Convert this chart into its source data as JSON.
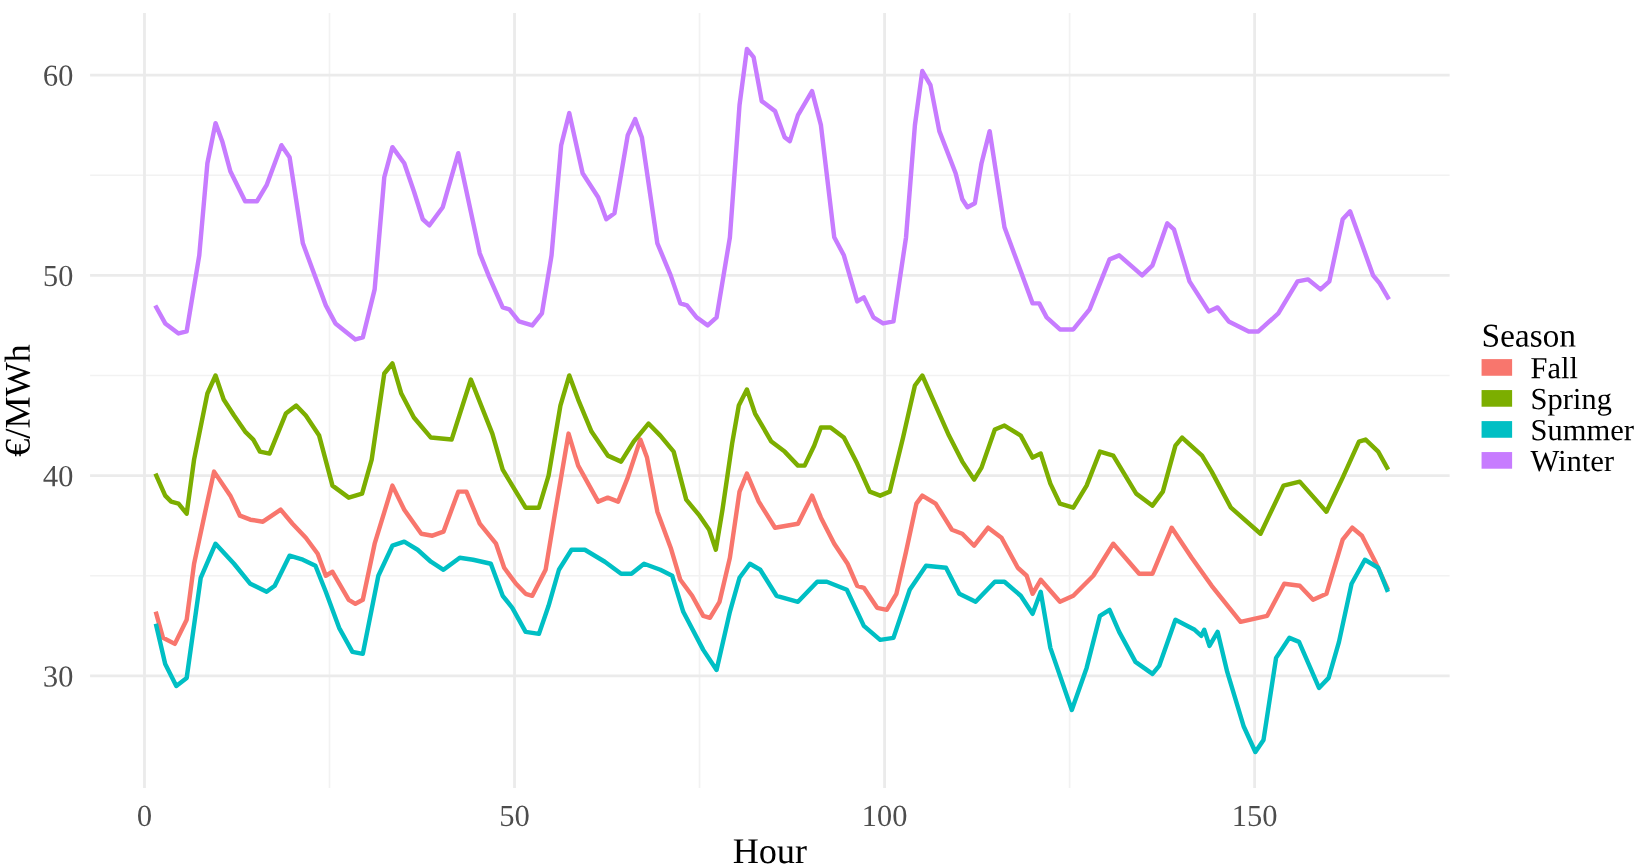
{
  "chart_data": {
    "type": "line",
    "xlabel": "Hour",
    "ylabel": "€/MWh",
    "legend_title": "Season",
    "legend": "right",
    "grid": true,
    "xlim": [
      -7.35,
      176.35
    ],
    "ylim": [
      24.4,
      63.1
    ],
    "xticks": [
      0,
      50,
      100,
      150
    ],
    "yticks": [
      30,
      40,
      50,
      60
    ],
    "series": [
      {
        "name": "Fall",
        "color": "#f8766d",
        "x": [
          1.6,
          2.5,
          4.1,
          5.7,
          6.7,
          8.5,
          9.4,
          11.6,
          12.9,
          14.3,
          16,
          18.4,
          20,
          21.8,
          23.4,
          24.5,
          25.4,
          27.6,
          28.5,
          29.5,
          31.1,
          33.5,
          35.1,
          37.4,
          38.9,
          40.4,
          42.4,
          43.5,
          45.3,
          47.5,
          48.6,
          50.2,
          51.5,
          52.4,
          54.2,
          55.5,
          57.3,
          58.6,
          61.3,
          62.6,
          64,
          65.3,
          67,
          67.9,
          69.3,
          71.1,
          72.4,
          74,
          75.5,
          76.4,
          77.7,
          79.1,
          80.4,
          81.4,
          83,
          85.2,
          88.3,
          90.2,
          91.4,
          93.2,
          95,
          96.3,
          97.2,
          99,
          100.3,
          101.6,
          102.9,
          104.3,
          105.1,
          106.9,
          109.1,
          110.5,
          112.1,
          114,
          115.8,
          118,
          119.2,
          120,
          121.1,
          123.7,
          125.5,
          128.2,
          130.9,
          134.4,
          136.2,
          138.8,
          141.5,
          144.2,
          146.8,
          148.1,
          151.7,
          154,
          156.1,
          157.9,
          159.7,
          161.9,
          163.2,
          164.5,
          166.3,
          167.9
        ],
        "values": [
          33.1,
          31.9,
          31.6,
          32.8,
          35.6,
          38.7,
          40.2,
          39.0,
          38.0,
          37.8,
          37.7,
          38.3,
          37.6,
          36.9,
          36.1,
          35.0,
          35.2,
          33.8,
          33.6,
          33.8,
          36.6,
          39.5,
          38.3,
          37.1,
          37.0,
          37.2,
          39.2,
          39.2,
          37.6,
          36.6,
          35.4,
          34.6,
          34.1,
          34.0,
          35.3,
          38.2,
          42.1,
          40.5,
          38.7,
          38.9,
          38.7,
          39.9,
          41.8,
          40.9,
          38.2,
          36.4,
          34.8,
          34.0,
          33.0,
          32.9,
          33.7,
          35.9,
          39.2,
          40.1,
          38.7,
          37.4,
          37.6,
          39.0,
          37.9,
          36.6,
          35.6,
          34.5,
          34.4,
          33.4,
          33.3,
          34.1,
          36.2,
          38.6,
          39.0,
          38.6,
          37.3,
          37.1,
          36.5,
          37.4,
          36.9,
          35.4,
          35.0,
          34.1,
          34.8,
          33.7,
          34.0,
          35.0,
          36.6,
          35.1,
          35.1,
          37.4,
          35.9,
          34.5,
          33.3,
          32.7,
          33.0,
          34.6,
          34.5,
          33.8,
          34.1,
          36.8,
          37.4,
          37.0,
          35.7,
          34.4
        ]
      },
      {
        "name": "Spring",
        "color": "#7cae00",
        "x": [
          1.6,
          2.8,
          3.6,
          4.6,
          5.7,
          6.7,
          8.5,
          9.6,
          10.7,
          12.1,
          13.6,
          14.7,
          15.6,
          16.9,
          19.1,
          20.5,
          21.8,
          23.6,
          25.4,
          27.6,
          29.4,
          30.7,
          32.4,
          33.5,
          34.7,
          36.4,
          38.7,
          41.5,
          44.1,
          47,
          48.4,
          51.5,
          53.3,
          54.6,
          56.2,
          57.4,
          58.6,
          60.4,
          62.6,
          64.4,
          66.1,
          68.1,
          69.7,
          71.5,
          73.2,
          75,
          76.3,
          77.2,
          78.1,
          79.4,
          80.3,
          81.4,
          82.5,
          84.7,
          86.5,
          88.3,
          89.2,
          90.5,
          91.4,
          92.7,
          94.5,
          96.3,
          98,
          99.4,
          100.7,
          102.5,
          104.1,
          105.1,
          106.9,
          108.7,
          110.5,
          112.1,
          113.1,
          114.9,
          116.2,
          118.4,
          120,
          121.1,
          122.4,
          123.7,
          125.5,
          127.3,
          129.1,
          130.9,
          134,
          136.2,
          137.6,
          139.3,
          140.2,
          142.9,
          144.2,
          146.8,
          150.8,
          153.9,
          156.1,
          159.7,
          161.9,
          164.1,
          165,
          166.7,
          167.9
        ],
        "values": [
          40.0,
          39.0,
          38.7,
          38.6,
          38.1,
          40.8,
          44.1,
          45.0,
          43.8,
          43.0,
          42.2,
          41.8,
          41.2,
          41.1,
          43.1,
          43.5,
          43.0,
          42.0,
          39.5,
          38.9,
          39.1,
          40.8,
          45.1,
          45.6,
          44.1,
          42.9,
          41.9,
          41.8,
          44.8,
          42.1,
          40.3,
          38.4,
          38.4,
          40.0,
          43.5,
          45.0,
          43.8,
          42.2,
          41.0,
          40.7,
          41.7,
          42.6,
          42.0,
          41.2,
          38.8,
          38.0,
          37.3,
          36.3,
          38.3,
          41.6,
          43.5,
          44.3,
          43.1,
          41.7,
          41.2,
          40.5,
          40.5,
          41.5,
          42.4,
          42.4,
          41.9,
          40.6,
          39.2,
          39.0,
          39.2,
          41.9,
          44.5,
          45.0,
          43.5,
          42.0,
          40.7,
          39.8,
          40.4,
          42.3,
          42.5,
          42.0,
          40.9,
          41.1,
          39.6,
          38.6,
          38.4,
          39.5,
          41.2,
          41.0,
          39.1,
          38.5,
          39.2,
          41.5,
          41.9,
          41.0,
          40.2,
          38.4,
          37.1,
          39.5,
          39.7,
          38.2,
          39.9,
          41.7,
          41.8,
          41.2,
          40.4
        ]
      },
      {
        "name": "Summer",
        "color": "#00bfc4",
        "x": [
          1.6,
          2.8,
          4.3,
          5.7,
          7.6,
          9.6,
          12.1,
          14.3,
          16.5,
          17.6,
          19.6,
          21.4,
          23.1,
          24.5,
          26.3,
          28.1,
          29.5,
          31.6,
          33.5,
          35.1,
          36.9,
          38.7,
          40.4,
          42.6,
          44.4,
          46.8,
          48.4,
          49.7,
          51.5,
          53.3,
          54.6,
          56,
          57.7,
          59.5,
          62.2,
          64.4,
          65.8,
          67.5,
          69.7,
          71.3,
          72.8,
          75.5,
          77.3,
          79.1,
          80.4,
          81.8,
          83.2,
          85.4,
          88.3,
          90.9,
          92.2,
          94.9,
          97.2,
          99.4,
          101.2,
          103.4,
          105.6,
          108.3,
          110.1,
          112.3,
          114.9,
          116.2,
          118.4,
          120,
          121.1,
          122.4,
          125.3,
          127.3,
          129.1,
          130.4,
          131.7,
          133.9,
          136.2,
          137.1,
          139.3,
          141.9,
          142.8,
          143.2,
          143.9,
          145,
          146.3,
          148.5,
          150.1,
          151.2,
          152.9,
          154.7,
          156,
          158.7,
          160,
          161.4,
          163.1,
          164.9,
          166.7,
          167.9
        ],
        "values": [
          32.5,
          30.6,
          29.5,
          29.9,
          34.9,
          36.6,
          35.6,
          34.6,
          34.2,
          34.5,
          36.0,
          35.8,
          35.5,
          34.2,
          32.4,
          31.2,
          31.1,
          35.0,
          36.5,
          36.7,
          36.3,
          35.7,
          35.3,
          35.9,
          35.8,
          35.6,
          34.0,
          33.4,
          32.2,
          32.1,
          33.5,
          35.3,
          36.3,
          36.3,
          35.7,
          35.1,
          35.1,
          35.6,
          35.3,
          35.0,
          33.2,
          31.3,
          30.3,
          33.2,
          34.9,
          35.6,
          35.3,
          34.0,
          33.7,
          34.7,
          34.7,
          34.3,
          32.5,
          31.8,
          31.9,
          34.3,
          35.5,
          35.4,
          34.1,
          33.7,
          34.7,
          34.7,
          34.0,
          33.1,
          34.2,
          31.4,
          28.3,
          30.4,
          33.0,
          33.3,
          32.2,
          30.7,
          30.1,
          30.5,
          32.8,
          32.3,
          32.0,
          32.3,
          31.5,
          32.2,
          30.2,
          27.5,
          26.2,
          26.8,
          30.9,
          31.9,
          31.7,
          29.4,
          29.9,
          31.7,
          34.6,
          35.8,
          35.4,
          34.3
        ]
      },
      {
        "name": "Winter",
        "color": "#c77cff",
        "x": [
          1.6,
          2.8,
          4.6,
          5.7,
          7.4,
          8.5,
          9.6,
          10.5,
          11.6,
          13.6,
          15.2,
          16.5,
          18.5,
          19.6,
          21.4,
          24.5,
          25.8,
          28.5,
          29.5,
          31.1,
          32.4,
          33.5,
          35.1,
          36.4,
          37.6,
          38.5,
          40.3,
          42.4,
          45.3,
          46.6,
          48.4,
          49.3,
          50.6,
          52.4,
          53.7,
          55,
          56.3,
          57.4,
          59.2,
          61.3,
          62.4,
          63.5,
          65.3,
          66.3,
          67.2,
          69.3,
          71.1,
          72.4,
          73.3,
          74.6,
          76.1,
          77.3,
          79.1,
          80.4,
          81.4,
          82.3,
          83.4,
          85.2,
          86.5,
          87.2,
          88.3,
          90.2,
          91.4,
          93.2,
          94.5,
          96.3,
          97.2,
          98.5,
          99.8,
          101.2,
          102.9,
          104.1,
          105.1,
          106.2,
          107.4,
          109.6,
          110.5,
          111.2,
          112.2,
          113.1,
          114.2,
          116.2,
          118.4,
          120,
          120.9,
          121.9,
          123.7,
          125.5,
          127.7,
          130.4,
          131.7,
          134.8,
          136.2,
          138.2,
          139.1,
          141.2,
          143.8,
          145,
          146.5,
          149.2,
          150.5,
          153.2,
          155.8,
          157.2,
          158.9,
          160.1,
          161.9,
          162.9,
          166,
          166.9,
          168
        ],
        "values": [
          48.4,
          47.6,
          47.1,
          47.2,
          51.0,
          55.6,
          57.6,
          56.7,
          55.2,
          53.7,
          53.7,
          54.5,
          56.5,
          55.9,
          51.6,
          48.5,
          47.6,
          46.8,
          46.9,
          49.3,
          54.9,
          56.4,
          55.6,
          54.2,
          52.8,
          52.5,
          53.4,
          56.1,
          51.1,
          49.9,
          48.4,
          48.3,
          47.7,
          47.5,
          48.1,
          51.0,
          56.5,
          58.1,
          55.1,
          53.9,
          52.8,
          53.1,
          57.0,
          57.8,
          56.9,
          51.6,
          50.0,
          48.6,
          48.5,
          47.9,
          47.5,
          47.9,
          51.9,
          58.5,
          61.3,
          60.9,
          58.7,
          58.2,
          56.9,
          56.7,
          58.0,
          59.2,
          57.5,
          51.9,
          51.0,
          48.7,
          48.9,
          47.9,
          47.6,
          47.7,
          51.9,
          57.5,
          60.2,
          59.5,
          57.2,
          55.1,
          53.8,
          53.4,
          53.6,
          55.6,
          57.2,
          52.4,
          50.2,
          48.6,
          48.6,
          47.9,
          47.3,
          47.3,
          48.3,
          50.8,
          51.0,
          50.0,
          50.5,
          52.6,
          52.3,
          49.7,
          48.2,
          48.4,
          47.7,
          47.2,
          47.2,
          48.1,
          49.7,
          49.8,
          49.3,
          49.7,
          52.8,
          53.2,
          50.0,
          49.6,
          48.9
        ]
      }
    ]
  }
}
